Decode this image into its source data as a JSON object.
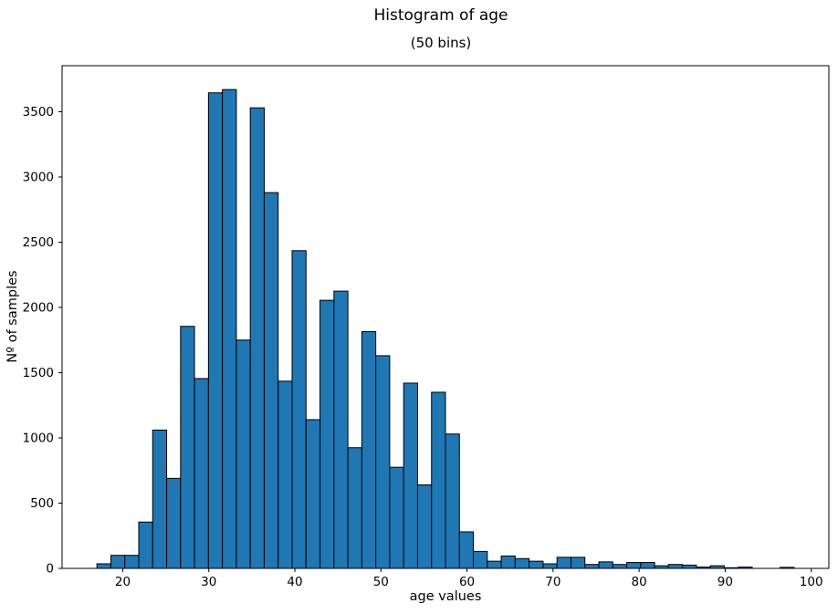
{
  "chart_data": {
    "type": "bar",
    "subtype": "histogram",
    "title": "Histogram of age",
    "subtitle": "(50 bins)",
    "xlabel": "age values",
    "ylabel": "Nº of samples",
    "n_bins": 50,
    "bin_start": 17,
    "bin_width": 1.62,
    "data_range": [
      17,
      98
    ],
    "counts": [
      35,
      100,
      100,
      355,
      1060,
      690,
      1855,
      1455,
      3645,
      3670,
      1750,
      3530,
      2880,
      1435,
      2435,
      1140,
      2055,
      2125,
      925,
      1815,
      1630,
      775,
      1420,
      640,
      1350,
      1030,
      280,
      130,
      55,
      95,
      75,
      55,
      35,
      85,
      85,
      30,
      50,
      30,
      45,
      45,
      20,
      30,
      25,
      10,
      20,
      5,
      10,
      0,
      0,
      8
    ],
    "xticks": [
      20,
      30,
      40,
      50,
      60,
      70,
      80,
      90,
      100
    ],
    "yticks": [
      0,
      500,
      1000,
      1500,
      2000,
      2500,
      3000,
      3500
    ],
    "xlim": [
      12.95,
      102.05
    ],
    "ylim": [
      0,
      3853
    ],
    "grid": false,
    "legend": null,
    "bar_color": "#1f77b4",
    "bar_edge_color": "#000000",
    "spine_color": "#000000",
    "background_color": "#ffffff"
  }
}
